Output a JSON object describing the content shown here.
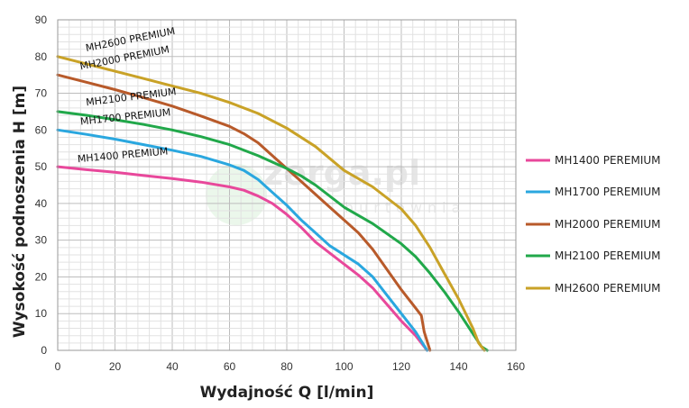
{
  "watermark": {
    "text": "zerga.pl",
    "sub": "hurtownia"
  },
  "chart_data": {
    "type": "line",
    "xlabel": "Wydajność Q [l/min]",
    "ylabel": "Wysokość podnoszenia H [m]",
    "xlim": [
      0,
      160
    ],
    "ylim": [
      0,
      90
    ],
    "xticks": [
      0,
      20,
      40,
      60,
      80,
      100,
      120,
      140,
      160
    ],
    "yticks": [
      0,
      10,
      20,
      30,
      40,
      50,
      60,
      70,
      80,
      90
    ],
    "grid": true,
    "legend_position": "right",
    "series": [
      {
        "name": "MH1400 PEREMIUM",
        "label": "MH1400 PREMIUM",
        "color": "#e8489b",
        "x": [
          0,
          10,
          20,
          30,
          40,
          50,
          60,
          65,
          70,
          75,
          80,
          85,
          90,
          95,
          100,
          105,
          110,
          115,
          120,
          125,
          129
        ],
        "y": [
          50,
          49.2,
          48.5,
          47.6,
          46.8,
          45.8,
          44.5,
          43.6,
          42,
          40,
          37,
          33.5,
          29.5,
          26.5,
          23.5,
          20.5,
          17,
          12.5,
          8,
          4,
          0
        ]
      },
      {
        "name": "MH1700 PEREMIUM",
        "label": "MH1700 PREMIUM",
        "color": "#2aa7df",
        "x": [
          0,
          10,
          20,
          30,
          40,
          50,
          60,
          65,
          70,
          75,
          80,
          85,
          90,
          95,
          100,
          105,
          110,
          115,
          120,
          125,
          129
        ],
        "y": [
          60,
          58.8,
          57.5,
          56,
          54.5,
          52.8,
          50.5,
          49,
          46.5,
          43,
          39.5,
          35.5,
          32,
          28.5,
          26,
          23.5,
          20,
          15,
          10,
          5,
          0
        ]
      },
      {
        "name": "MH2000 PEREMIUM",
        "label": "MH2000 PREMIUM",
        "color": "#b85a2a",
        "x": [
          0,
          10,
          20,
          30,
          40,
          50,
          60,
          65,
          70,
          75,
          80,
          85,
          90,
          95,
          100,
          105,
          110,
          115,
          120,
          125,
          127,
          128,
          130
        ],
        "y": [
          75,
          73,
          71,
          68.8,
          66.5,
          63.8,
          61,
          59,
          56.5,
          53,
          49.5,
          46,
          42.5,
          39,
          35.5,
          32,
          27.5,
          22,
          16.5,
          11.5,
          9.5,
          5,
          0
        ]
      },
      {
        "name": "MH2100 PEREMIUM",
        "label": "MH2100 PREMIUM",
        "color": "#21a84a",
        "x": [
          0,
          10,
          20,
          30,
          40,
          50,
          60,
          70,
          80,
          85,
          90,
          95,
          100,
          110,
          120,
          125,
          130,
          135,
          140,
          145,
          148,
          150
        ],
        "y": [
          65,
          64,
          62.8,
          61.5,
          60,
          58.2,
          56,
          53,
          49.5,
          47.5,
          45,
          42,
          39,
          34.5,
          29,
          25.5,
          21,
          16,
          10.5,
          4.5,
          1,
          0
        ]
      },
      {
        "name": "MH2600 PEREMIUM",
        "label": "MH2600 PREMIUM",
        "color": "#c9a227",
        "x": [
          0,
          10,
          20,
          30,
          40,
          50,
          60,
          70,
          80,
          90,
          100,
          110,
          120,
          125,
          130,
          135,
          140,
          145,
          147,
          149
        ],
        "y": [
          80,
          78,
          76,
          74,
          72,
          70,
          67.5,
          64.5,
          60.5,
          55.5,
          49,
          44.5,
          38.5,
          34,
          28,
          21,
          14,
          6,
          2,
          0
        ]
      }
    ]
  }
}
